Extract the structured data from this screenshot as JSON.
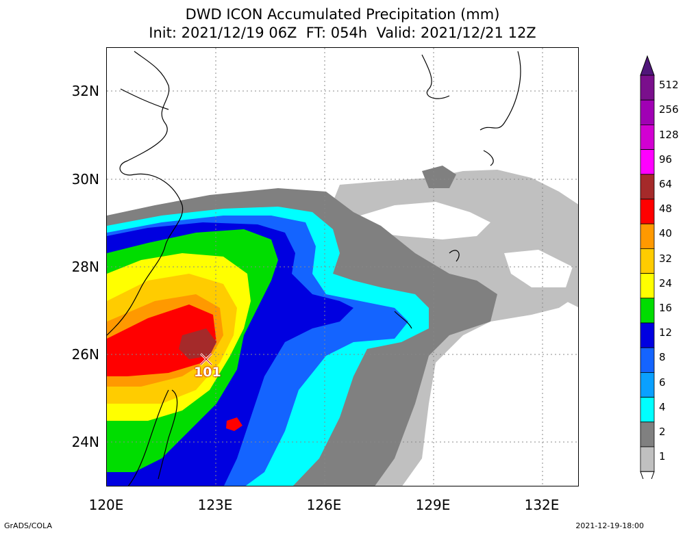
{
  "title": {
    "line1": "DWD ICON Accumulated Precipitation (mm)",
    "line2": "Init: 2021/12/19 06Z  FT: 054h  Valid: 2021/12/21 12Z"
  },
  "axes": {
    "lat_ticks": [
      "32N",
      "30N",
      "28N",
      "26N",
      "24N"
    ],
    "lon_ticks": [
      "120E",
      "123E",
      "126E",
      "129E",
      "132E"
    ],
    "lat_range": [
      23,
      33
    ],
    "lon_range": [
      120,
      133
    ]
  },
  "legend": {
    "levels": [
      "512",
      "256",
      "128",
      "96",
      "64",
      "48",
      "40",
      "32",
      "24",
      "16",
      "12",
      "8",
      "6",
      "4",
      "2",
      "1"
    ],
    "colors": [
      "#7a0f8c",
      "#a000b4",
      "#d200d2",
      "#ff00ff",
      "#a52a2a",
      "#ff0000",
      "#ff9900",
      "#ffcc00",
      "#ffff00",
      "#00dd00",
      "#0000e0",
      "#1464ff",
      "#0aa0ff",
      "#00ffff",
      "#808080",
      "#c0c0c0"
    ],
    "top_cap_color": "#50167a"
  },
  "max_marker": {
    "value": "101",
    "lon": 122.8,
    "lat": 25.9
  },
  "footer": {
    "left": "GrADS/COLA",
    "right": "2021-12-19-18:00"
  }
}
